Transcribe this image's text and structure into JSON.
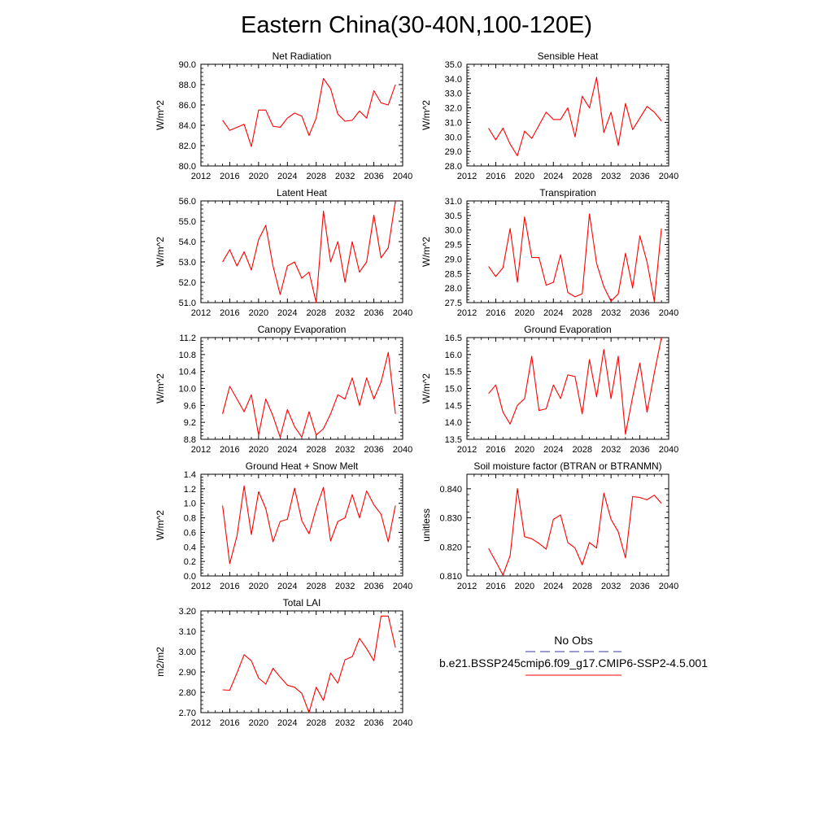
{
  "figure": {
    "title": "Eastern China(30-40N,100-120E)",
    "line_color": "#ff0000",
    "obs_color": "#3a3aa6",
    "legend": {
      "obs_label": "No Obs",
      "model_label": "b.e21.BSSP245cmip6.f09_g17.CMIP6-SSP2-4.5.001"
    }
  },
  "chart_data": [
    {
      "type": "line",
      "title": "Net Radiation",
      "ylabel": "W/m^2",
      "xlim": [
        2012,
        2040
      ],
      "ylim": [
        80,
        90
      ],
      "x_ticks": [
        "2012",
        "2016",
        "2020",
        "2024",
        "2028",
        "2032",
        "2036",
        "2040"
      ],
      "y_ticks": [
        "80.0",
        "82.0",
        "84.0",
        "86.0",
        "88.0",
        "90.0"
      ],
      "series": [
        {
          "x": [
            2015,
            2016,
            2017,
            2018,
            2019,
            2020,
            2021,
            2022,
            2023,
            2024,
            2025,
            2026,
            2027,
            2028,
            2029,
            2030,
            2031,
            2032,
            2033,
            2034,
            2035,
            2036,
            2037,
            2038,
            2039
          ],
          "y": [
            84.5,
            83.5,
            83.8,
            84.1,
            81.9,
            85.5,
            85.5,
            83.9,
            83.8,
            84.7,
            85.2,
            84.9,
            83.0,
            84.7,
            88.6,
            87.6,
            85.1,
            84.4,
            84.5,
            85.4,
            84.7,
            87.4,
            86.2,
            86.0,
            88.0
          ]
        }
      ]
    },
    {
      "type": "line",
      "title": "Sensible Heat",
      "ylabel": "W/m^2",
      "xlim": [
        2012,
        2040
      ],
      "ylim": [
        28,
        35
      ],
      "x_ticks": [
        "2012",
        "2016",
        "2020",
        "2024",
        "2028",
        "2032",
        "2036",
        "2040"
      ],
      "y_ticks": [
        "28.0",
        "29.0",
        "30.0",
        "31.0",
        "32.0",
        "33.0",
        "34.0",
        "35.0"
      ],
      "series": [
        {
          "x": [
            2015,
            2016,
            2017,
            2018,
            2019,
            2020,
            2021,
            2022,
            2023,
            2024,
            2025,
            2026,
            2027,
            2028,
            2029,
            2030,
            2031,
            2032,
            2033,
            2034,
            2035,
            2036,
            2037,
            2038,
            2039
          ],
          "y": [
            30.6,
            29.8,
            30.6,
            29.5,
            28.7,
            30.4,
            29.9,
            30.8,
            31.7,
            31.2,
            31.2,
            32.0,
            30.0,
            32.8,
            32.0,
            34.1,
            30.3,
            31.7,
            29.4,
            32.3,
            30.5,
            31.3,
            32.1,
            31.7,
            31.1
          ]
        }
      ]
    },
    {
      "type": "line",
      "title": "Latent Heat",
      "ylabel": "W/m^2",
      "xlim": [
        2012,
        2040
      ],
      "ylim": [
        51,
        56
      ],
      "x_ticks": [
        "2012",
        "2016",
        "2020",
        "2024",
        "2028",
        "2032",
        "2036",
        "2040"
      ],
      "y_ticks": [
        "51.0",
        "52.0",
        "53.0",
        "54.0",
        "55.0",
        "56.0"
      ],
      "series": [
        {
          "x": [
            2015,
            2016,
            2017,
            2018,
            2019,
            2020,
            2021,
            2022,
            2023,
            2024,
            2025,
            2026,
            2027,
            2028,
            2029,
            2030,
            2031,
            2032,
            2033,
            2034,
            2035,
            2036,
            2037,
            2038,
            2039
          ],
          "y": [
            53.0,
            53.6,
            52.8,
            53.5,
            52.6,
            54.1,
            54.8,
            52.8,
            51.4,
            52.8,
            53.0,
            52.2,
            52.5,
            51.0,
            55.5,
            53.0,
            54.0,
            52.0,
            54.0,
            52.5,
            53.0,
            55.3,
            53.2,
            53.7,
            56.0
          ]
        }
      ]
    },
    {
      "type": "line",
      "title": "Transpiration",
      "ylabel": "W/m^2",
      "xlim": [
        2012,
        2040
      ],
      "ylim": [
        27.5,
        31
      ],
      "x_ticks": [
        "2012",
        "2016",
        "2020",
        "2024",
        "2028",
        "2032",
        "2036",
        "2040"
      ],
      "y_ticks": [
        "27.5",
        "28.0",
        "28.5",
        "29.0",
        "29.5",
        "30.0",
        "30.5",
        "31.0"
      ],
      "series": [
        {
          "x": [
            2015,
            2016,
            2017,
            2018,
            2019,
            2020,
            2021,
            2022,
            2023,
            2024,
            2025,
            2026,
            2027,
            2028,
            2029,
            2030,
            2031,
            2032,
            2033,
            2034,
            2035,
            2036,
            2037,
            2038,
            2039
          ],
          "y": [
            28.75,
            28.4,
            28.7,
            30.05,
            28.2,
            30.45,
            29.05,
            29.05,
            28.1,
            28.2,
            29.15,
            27.85,
            27.7,
            27.8,
            30.55,
            28.85,
            28.05,
            27.55,
            27.8,
            29.2,
            28.0,
            29.8,
            28.9,
            27.55,
            30.05
          ]
        }
      ]
    },
    {
      "type": "line",
      "title": "Canopy Evaporation",
      "ylabel": "W/m^2",
      "xlim": [
        2012,
        2040
      ],
      "ylim": [
        8.8,
        11.2
      ],
      "x_ticks": [
        "2012",
        "2016",
        "2020",
        "2024",
        "2028",
        "2032",
        "2036",
        "2040"
      ],
      "y_ticks": [
        "8.8",
        "9.2",
        "9.6",
        "10.0",
        "10.4",
        "10.8",
        "11.2"
      ],
      "series": [
        {
          "x": [
            2015,
            2016,
            2017,
            2018,
            2019,
            2020,
            2021,
            2022,
            2023,
            2024,
            2025,
            2026,
            2027,
            2028,
            2029,
            2030,
            2031,
            2032,
            2033,
            2034,
            2035,
            2036,
            2037,
            2038,
            2039
          ],
          "y": [
            9.4,
            10.05,
            9.75,
            9.45,
            9.85,
            8.9,
            9.75,
            9.35,
            8.85,
            9.5,
            9.1,
            8.85,
            9.45,
            8.9,
            9.05,
            9.4,
            9.85,
            9.75,
            10.25,
            9.6,
            10.25,
            9.75,
            10.15,
            10.85,
            9.4
          ]
        }
      ]
    },
    {
      "type": "line",
      "title": "Ground Evaporation",
      "ylabel": "W/m^2",
      "xlim": [
        2012,
        2040
      ],
      "ylim": [
        13.5,
        16.5
      ],
      "x_ticks": [
        "2012",
        "2016",
        "2020",
        "2024",
        "2028",
        "2032",
        "2036",
        "2040"
      ],
      "y_ticks": [
        "13.5",
        "14.0",
        "14.5",
        "15.0",
        "15.5",
        "16.0",
        "16.5"
      ],
      "series": [
        {
          "x": [
            2015,
            2016,
            2017,
            2018,
            2019,
            2020,
            2021,
            2022,
            2023,
            2024,
            2025,
            2026,
            2027,
            2028,
            2029,
            2030,
            2031,
            2032,
            2033,
            2034,
            2035,
            2036,
            2037,
            2038,
            2039
          ],
          "y": [
            14.85,
            15.1,
            14.3,
            13.95,
            14.5,
            14.7,
            15.95,
            14.35,
            14.4,
            15.1,
            14.7,
            15.4,
            15.35,
            14.25,
            15.85,
            14.75,
            16.15,
            14.7,
            15.95,
            13.65,
            14.75,
            15.75,
            14.3,
            15.45,
            16.5
          ]
        }
      ]
    },
    {
      "type": "line",
      "title": "Ground Heat + Snow Melt",
      "ylabel": "W/m^2",
      "xlim": [
        2012,
        2040
      ],
      "ylim": [
        0,
        1.4
      ],
      "x_ticks": [
        "2012",
        "2016",
        "2020",
        "2024",
        "2028",
        "2032",
        "2036",
        "2040"
      ],
      "y_ticks": [
        "0.0",
        "0.2",
        "0.4",
        "0.6",
        "0.8",
        "1.0",
        "1.2",
        "1.4"
      ],
      "series": [
        {
          "x": [
            2015,
            2016,
            2017,
            2018,
            2019,
            2020,
            2021,
            2022,
            2023,
            2024,
            2025,
            2026,
            2027,
            2028,
            2029,
            2030,
            2031,
            2032,
            2033,
            2034,
            2035,
            2036,
            2037,
            2038,
            2039
          ],
          "y": [
            0.97,
            0.17,
            0.55,
            1.24,
            0.57,
            1.16,
            0.93,
            0.47,
            0.75,
            0.78,
            1.21,
            0.76,
            0.58,
            0.93,
            1.22,
            0.48,
            0.75,
            0.8,
            1.12,
            0.8,
            1.17,
            0.98,
            0.85,
            0.47,
            0.97
          ]
        }
      ]
    },
    {
      "type": "line",
      "title": "Soil moisture factor (BTRAN or BTRANMN)",
      "ylabel": "unitless",
      "xlim": [
        2012,
        2040
      ],
      "ylim": [
        0.81,
        0.845
      ],
      "x_ticks": [
        "2012",
        "2016",
        "2020",
        "2024",
        "2028",
        "2032",
        "2036",
        "2040"
      ],
      "y_ticks": [
        "0.810",
        "0.820",
        "0.830",
        "0.840"
      ],
      "series": [
        {
          "x": [
            2015,
            2016,
            2017,
            2018,
            2019,
            2020,
            2021,
            2022,
            2023,
            2024,
            2025,
            2026,
            2027,
            2028,
            2029,
            2030,
            2031,
            2032,
            2033,
            2034,
            2035,
            2036,
            2037,
            2038,
            2039
          ],
          "y": [
            0.8195,
            0.815,
            0.8103,
            0.817,
            0.8401,
            0.8235,
            0.8228,
            0.8212,
            0.8192,
            0.8295,
            0.831,
            0.8215,
            0.8196,
            0.8138,
            0.8215,
            0.8196,
            0.8385,
            0.8295,
            0.8252,
            0.8162,
            0.8373,
            0.837,
            0.8362,
            0.8378,
            0.835
          ]
        }
      ]
    },
    {
      "type": "line",
      "title": "Total LAI",
      "ylabel": "m2/m2",
      "xlim": [
        2012,
        2040
      ],
      "ylim": [
        2.7,
        3.2
      ],
      "x_ticks": [
        "2012",
        "2016",
        "2020",
        "2024",
        "2028",
        "2032",
        "2036",
        "2040"
      ],
      "y_ticks": [
        "2.70",
        "2.80",
        "2.90",
        "3.00",
        "3.10",
        "3.20"
      ],
      "series": [
        {
          "x": [
            2015,
            2016,
            2017,
            2018,
            2019,
            2020,
            2021,
            2022,
            2023,
            2024,
            2025,
            2026,
            2027,
            2028,
            2029,
            2030,
            2031,
            2032,
            2033,
            2034,
            2035,
            2036,
            2037,
            2038,
            2039
          ],
          "y": [
            2.812,
            2.81,
            2.895,
            2.985,
            2.955,
            2.87,
            2.84,
            2.918,
            2.875,
            2.835,
            2.825,
            2.795,
            2.7,
            2.825,
            2.76,
            2.895,
            2.845,
            2.96,
            2.975,
            3.065,
            3.015,
            2.955,
            3.175,
            3.175,
            3.02
          ]
        }
      ]
    }
  ]
}
